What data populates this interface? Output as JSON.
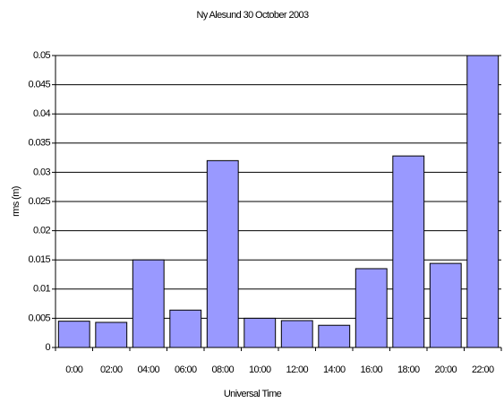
{
  "chart_data": {
    "type": "bar",
    "title": "Ny Alesund 30 October 2003",
    "x_label": "Universal Time",
    "y_label": "rms (m)",
    "categories": [
      "0:00",
      "02:00",
      "04:00",
      "06:00",
      "08:00",
      "10:00",
      "12:00",
      "14:00",
      "16:00",
      "18:00",
      "20:00",
      "22:00"
    ],
    "values": [
      0.0045,
      0.0043,
      0.015,
      0.0064,
      0.032,
      0.005,
      0.0046,
      0.0038,
      0.0135,
      0.0328,
      0.0144,
      0.05
    ],
    "color": "#9999ff",
    "ylim": [
      0,
      0.05
    ],
    "yticks": [
      0,
      0.005,
      0.01,
      0.015,
      0.02,
      0.025,
      0.03,
      0.035,
      0.04,
      0.045,
      0.05
    ],
    "grid": true
  }
}
